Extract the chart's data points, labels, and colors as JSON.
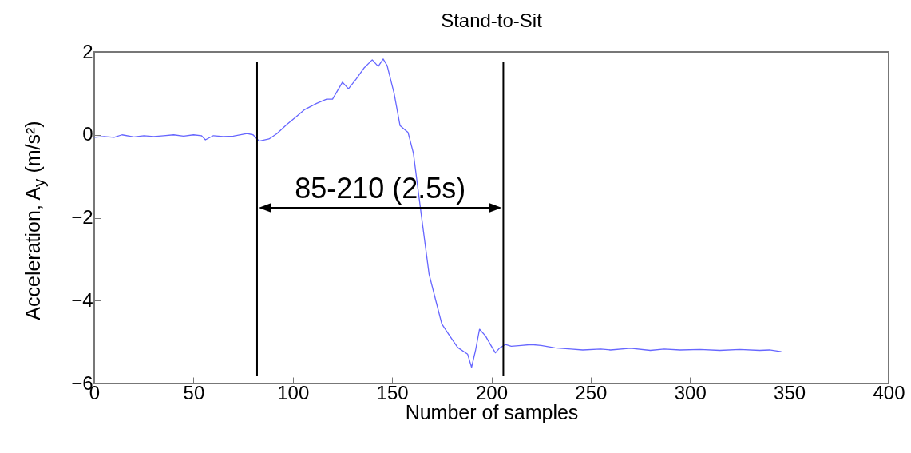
{
  "chart_data": {
    "type": "line",
    "title": "Stand-to-Sit",
    "xlabel": "Number of samples",
    "ylabel": "Acceleration, A$_{y}$ (m/s²)",
    "x": [
      0,
      5,
      10,
      14,
      20,
      25,
      30,
      35,
      40,
      45,
      50,
      54,
      56,
      60,
      65,
      70,
      77,
      80,
      83,
      88,
      92,
      97,
      102,
      106,
      112,
      117,
      120,
      125,
      128,
      132,
      136,
      140,
      143,
      145.5,
      147.5,
      151,
      154,
      158,
      160.7,
      164.6,
      168.6,
      172,
      175,
      179,
      183,
      188,
      190,
      192,
      194,
      197,
      200,
      202,
      204,
      207,
      210,
      215,
      220,
      225,
      232,
      240,
      246,
      255,
      260,
      270,
      280,
      287,
      295,
      305,
      315,
      325,
      335,
      340,
      346
    ],
    "series": [
      {
        "color": "#6666ff",
        "values": [
          -0.06,
          -0.04,
          -0.06,
          0.0,
          -0.05,
          -0.02,
          -0.04,
          -0.02,
          0.0,
          -0.03,
          0.0,
          -0.02,
          -0.12,
          -0.02,
          -0.04,
          -0.03,
          0.03,
          0.0,
          -0.15,
          -0.1,
          0.03,
          0.25,
          0.45,
          0.61,
          0.76,
          0.86,
          0.86,
          1.27,
          1.11,
          1.35,
          1.62,
          1.81,
          1.65,
          1.83,
          1.67,
          1.0,
          0.22,
          0.06,
          -0.44,
          -1.9,
          -3.36,
          -4.0,
          -4.56,
          -4.85,
          -5.13,
          -5.29,
          -5.61,
          -5.2,
          -4.69,
          -4.85,
          -5.1,
          -5.26,
          -5.15,
          -5.06,
          -5.1,
          -5.08,
          -5.06,
          -5.08,
          -5.14,
          -5.17,
          -5.19,
          -5.17,
          -5.19,
          -5.15,
          -5.2,
          -5.17,
          -5.19,
          -5.18,
          -5.2,
          -5.18,
          -5.2,
          -5.19,
          -5.23
        ]
      }
    ],
    "xlim": [
      0,
      400
    ],
    "xticks": [
      0,
      50,
      100,
      150,
      200,
      250,
      300,
      350,
      400
    ],
    "ylim": [
      -6,
      2
    ],
    "yticks": [
      -6,
      -4,
      -2,
      0,
      2
    ],
    "ref_lines": [
      {
        "axis": "x",
        "value": 82,
        "color": "#000000"
      },
      {
        "axis": "x",
        "value": 206,
        "color": "#000000"
      }
    ],
    "annotations": [
      "85-210 (2.5s)"
    ]
  }
}
